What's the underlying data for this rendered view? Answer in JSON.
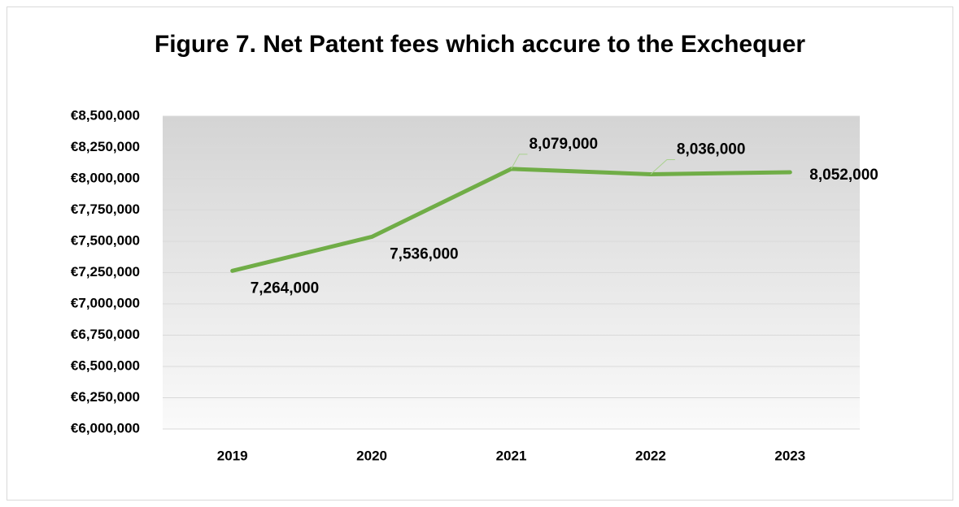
{
  "chart_data": {
    "type": "line",
    "title": "Figure 7. Net Patent fees which accure to the Exchequer",
    "categories": [
      "2019",
      "2020",
      "2021",
      "2022",
      "2023"
    ],
    "series": [
      {
        "name": "Net Patent fees",
        "color": "#70ad47",
        "values": [
          7264000,
          7536000,
          8079000,
          8036000,
          8052000
        ],
        "value_labels": [
          "7,264,000",
          "7,536,000",
          "8,079,000",
          "8,036,000",
          "8,052,000"
        ]
      }
    ],
    "ylim": [
      6000000,
      8500000
    ],
    "yticks": [
      {
        "value": 6000000,
        "label": "€6,000,000"
      },
      {
        "value": 6250000,
        "label": "€6,250,000"
      },
      {
        "value": 6500000,
        "label": "€6,500,000"
      },
      {
        "value": 6750000,
        "label": "€6,750,000"
      },
      {
        "value": 7000000,
        "label": "€7,000,000"
      },
      {
        "value": 7250000,
        "label": "€7,250,000"
      },
      {
        "value": 7500000,
        "label": "€7,500,000"
      },
      {
        "value": 7750000,
        "label": "€7,750,000"
      },
      {
        "value": 8000000,
        "label": "€8,000,000"
      },
      {
        "value": 8250000,
        "label": "€8,250,000"
      },
      {
        "value": 8500000,
        "label": "€8,500,000"
      }
    ],
    "grid": true
  }
}
